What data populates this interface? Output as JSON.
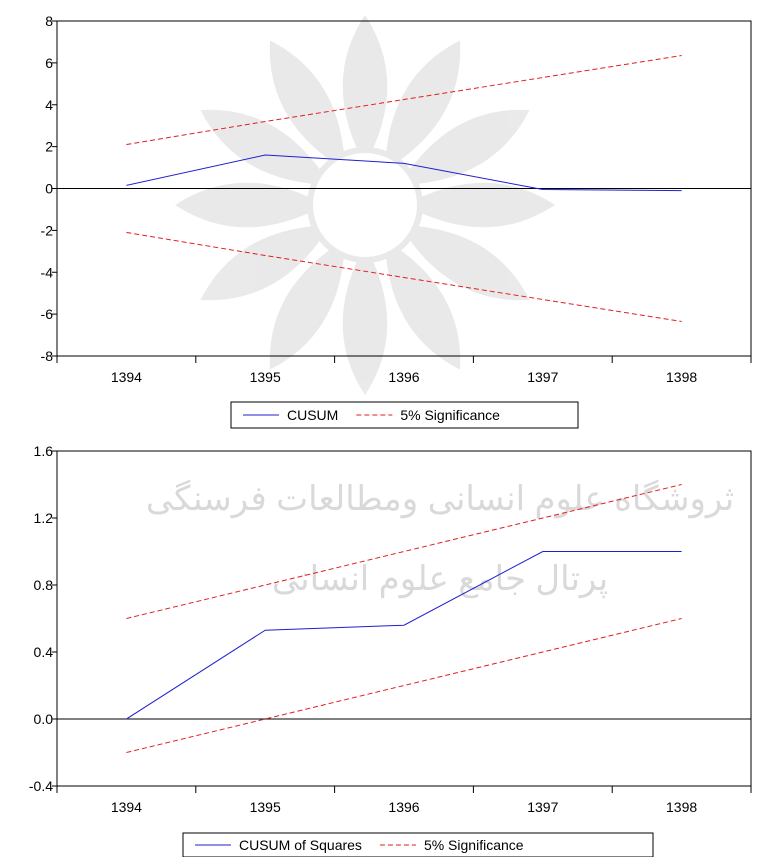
{
  "chart_data": [
    {
      "type": "line",
      "title": "",
      "xlabel": "",
      "ylabel": "",
      "categories": [
        "1394",
        "1395",
        "1396",
        "1397",
        "1398"
      ],
      "xlim": [
        1393.5,
        1398.5
      ],
      "ylim": [
        -8,
        8
      ],
      "yticks": [
        "8",
        "6",
        "4",
        "2",
        "0",
        "-2",
        "-4",
        "-6",
        "-8"
      ],
      "grid": false,
      "zero_line": true,
      "legend_position": "bottom-center",
      "series": [
        {
          "name": "CUSUM",
          "style": "solid",
          "color": "#1f1fd0",
          "values": [
            0.15,
            1.6,
            1.2,
            -0.05,
            -0.1
          ]
        },
        {
          "name": "5% Significance",
          "style": "dashed",
          "color": "#e0201e",
          "values": [
            2.1,
            3.2,
            4.25,
            5.3,
            6.35
          ]
        },
        {
          "name": "",
          "style": "dashed",
          "color": "#e0201e",
          "values": [
            -2.1,
            -3.2,
            -4.25,
            -5.3,
            -6.35
          ]
        }
      ],
      "legend": [
        "CUSUM",
        "5% Significance"
      ]
    },
    {
      "type": "line",
      "title": "",
      "xlabel": "",
      "ylabel": "",
      "categories": [
        "1394",
        "1395",
        "1396",
        "1397",
        "1398"
      ],
      "xlim": [
        1393.5,
        1398.5
      ],
      "ylim": [
        -0.4,
        1.6
      ],
      "yticks": [
        "1.6",
        "1.2",
        "0.8",
        "0.4",
        "0.0",
        "-0.4"
      ],
      "grid": false,
      "zero_line": true,
      "legend_position": "bottom-center",
      "series": [
        {
          "name": "CUSUM of Squares",
          "style": "solid",
          "color": "#1f1fd0",
          "values": [
            0.0,
            0.53,
            0.56,
            1.0,
            1.0
          ]
        },
        {
          "name": "5% Significance",
          "style": "dashed",
          "color": "#e0201e",
          "values": [
            0.6,
            0.8,
            1.0,
            1.2,
            1.4
          ]
        },
        {
          "name": "",
          "style": "dashed",
          "color": "#e0201e",
          "values": [
            -0.2,
            0.0,
            0.2,
            0.4,
            0.6
          ]
        }
      ],
      "legend": [
        "CUSUM of Squares",
        "5% Significance"
      ]
    }
  ],
  "watermark": {
    "text_line1": "ثروشگاه علوم انسانی ومطالعات فرسنگی",
    "text_line2": "پرتال جامع علوم انسانی"
  }
}
